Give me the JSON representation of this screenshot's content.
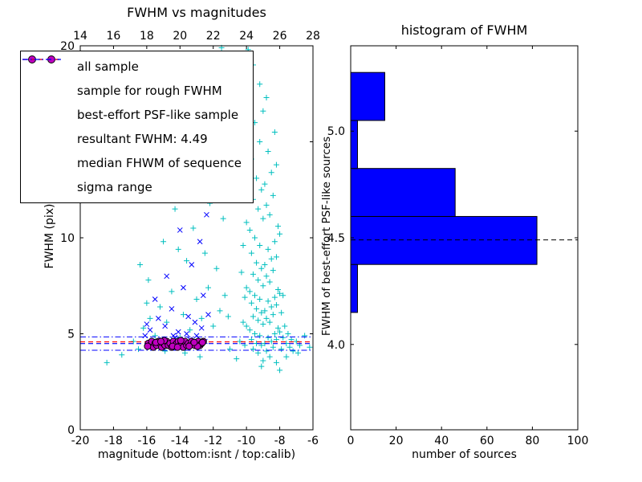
{
  "chart_data": [
    {
      "type": "scatter",
      "title": "FWHM vs magnitudes",
      "xlabel": "magnitude (bottom:isnt / top:calib)",
      "ylabel": "FWHM (pix)",
      "xlim": [
        -20,
        -6
      ],
      "ylim": [
        0,
        20
      ],
      "xticks": {
        "values": [
          -20,
          -18,
          -16,
          -14,
          -12,
          -10,
          -8,
          -6
        ],
        "labels": [
          "-20",
          "-18",
          "-16",
          "-14",
          "-12",
          "-10",
          "-8",
          "-6"
        ]
      },
      "top_xticks": {
        "xlim": [
          14,
          28
        ],
        "values": [
          14,
          16,
          18,
          20,
          22,
          24,
          26,
          28
        ],
        "labels": [
          "14",
          "16",
          "18",
          "20",
          "22",
          "24",
          "26",
          "28"
        ]
      },
      "yticks": {
        "values": [
          0,
          5,
          10,
          15,
          20
        ],
        "labels": [
          "0",
          "5",
          "10",
          "15",
          "20"
        ]
      },
      "series": [
        {
          "name": "all sample",
          "marker": "plus",
          "color": "#00bfbf",
          "points": [
            [
              -9.0,
              3.6
            ],
            [
              -8.6,
              3.8
            ],
            [
              -9.3,
              4.0
            ],
            [
              -8.8,
              4.1
            ],
            [
              -9.6,
              4.2
            ],
            [
              -8.4,
              4.3
            ],
            [
              -9.1,
              4.4
            ],
            [
              -8.9,
              4.5
            ],
            [
              -9.4,
              4.5
            ],
            [
              -8.5,
              4.6
            ],
            [
              -8.2,
              4.7
            ],
            [
              -9.7,
              4.7
            ],
            [
              -8.7,
              4.8
            ],
            [
              -9.2,
              4.9
            ],
            [
              -8.3,
              5.0
            ],
            [
              -9.5,
              5.0
            ],
            [
              -8.0,
              5.1
            ],
            [
              -9.8,
              5.2
            ],
            [
              -8.1,
              5.3
            ],
            [
              -10.0,
              5.4
            ],
            [
              -9.0,
              5.5
            ],
            [
              -8.6,
              5.6
            ],
            [
              -9.3,
              5.7
            ],
            [
              -8.8,
              5.8
            ],
            [
              -9.6,
              5.9
            ],
            [
              -8.4,
              6.0
            ],
            [
              -9.1,
              6.1
            ],
            [
              -8.9,
              6.2
            ],
            [
              -9.4,
              6.3
            ],
            [
              -8.5,
              6.4
            ],
            [
              -8.2,
              6.5
            ],
            [
              -9.7,
              6.6
            ],
            [
              -8.7,
              6.7
            ],
            [
              -9.2,
              6.8
            ],
            [
              -8.3,
              6.9
            ],
            [
              -9.5,
              7.0
            ],
            [
              -8.0,
              7.1
            ],
            [
              -9.8,
              7.2
            ],
            [
              -8.1,
              7.3
            ],
            [
              -10.0,
              7.4
            ],
            [
              -9.0,
              7.5
            ],
            [
              -8.6,
              7.7
            ],
            [
              -9.3,
              7.8
            ],
            [
              -8.8,
              8.0
            ],
            [
              -9.6,
              8.1
            ],
            [
              -8.4,
              8.3
            ],
            [
              -9.1,
              8.4
            ],
            [
              -8.9,
              8.6
            ],
            [
              -9.4,
              8.7
            ],
            [
              -8.5,
              8.9
            ],
            [
              -8.2,
              9.0
            ],
            [
              -9.7,
              9.2
            ],
            [
              -8.7,
              9.4
            ],
            [
              -9.2,
              9.6
            ],
            [
              -8.3,
              9.8
            ],
            [
              -9.5,
              10.0
            ],
            [
              -8.0,
              10.2
            ],
            [
              -9.8,
              10.4
            ],
            [
              -8.1,
              10.6
            ],
            [
              -10.0,
              10.8
            ],
            [
              -9.0,
              11.0
            ],
            [
              -8.6,
              11.2
            ],
            [
              -9.3,
              11.5
            ],
            [
              -8.8,
              11.7
            ],
            [
              -9.6,
              12.0
            ],
            [
              -8.4,
              12.2
            ],
            [
              -9.1,
              12.5
            ],
            [
              -8.9,
              12.8
            ],
            [
              -9.4,
              13.1
            ],
            [
              -8.5,
              13.4
            ],
            [
              -8.2,
              13.8
            ],
            [
              -9.7,
              14.1
            ],
            [
              -8.7,
              14.5
            ],
            [
              -9.2,
              15.0
            ],
            [
              -8.3,
              15.5
            ],
            [
              -9.5,
              16.0
            ],
            [
              -9.0,
              16.6
            ],
            [
              -8.8,
              17.3
            ],
            [
              -9.2,
              18.0
            ],
            [
              -9.6,
              19.0
            ],
            [
              -9.9,
              19.8
            ],
            [
              -10.1,
              4.4
            ],
            [
              -10.2,
              5.6
            ],
            [
              -10.1,
              6.9
            ],
            [
              -10.3,
              8.2
            ],
            [
              -10.2,
              9.6
            ],
            [
              -7.9,
              4.2
            ],
            [
              -7.8,
              4.8
            ],
            [
              -7.7,
              5.4
            ],
            [
              -7.9,
              6.1
            ],
            [
              -7.8,
              7.0
            ],
            [
              -7.6,
              4.5
            ],
            [
              -7.5,
              5.0
            ],
            [
              -7.4,
              4.3
            ],
            [
              -7.3,
              4.7
            ],
            [
              -7.2,
              4.1
            ],
            [
              -7.0,
              4.6
            ],
            [
              -6.8,
              4.4
            ],
            [
              -6.5,
              4.9
            ],
            [
              -6.2,
              4.3
            ],
            [
              -16.8,
              4.6
            ],
            [
              -16.2,
              5.3
            ],
            [
              -15.9,
              7.8
            ],
            [
              -15.5,
              4.9
            ],
            [
              -15.2,
              6.4
            ],
            [
              -15.0,
              9.8
            ],
            [
              -14.8,
              5.6
            ],
            [
              -14.5,
              7.2
            ],
            [
              -14.3,
              11.5
            ],
            [
              -14.0,
              4.8
            ],
            [
              -13.8,
              6.0
            ],
            [
              -13.6,
              8.8
            ],
            [
              -13.4,
              5.2
            ],
            [
              -13.2,
              10.5
            ],
            [
              -13.0,
              6.8
            ],
            [
              -12.9,
              12.8
            ],
            [
              -12.7,
              5.8
            ],
            [
              -12.5,
              9.2
            ],
            [
              -12.4,
              19.6
            ],
            [
              -12.3,
              7.4
            ],
            [
              -12.1,
              13.5
            ],
            [
              -12.0,
              5.4
            ],
            [
              -11.9,
              16.2
            ],
            [
              -11.8,
              8.4
            ],
            [
              -11.6,
              6.2
            ],
            [
              -11.5,
              19.9
            ],
            [
              -11.4,
              11.0
            ],
            [
              -11.3,
              7.0
            ],
            [
              -11.2,
              14.6
            ],
            [
              -11.1,
              5.9
            ],
            [
              -15.6,
              12.2
            ],
            [
              -14.6,
              13.9
            ],
            [
              -16.4,
              8.6
            ],
            [
              -13.9,
              15.3
            ],
            [
              -12.6,
              17.4
            ],
            [
              -15.8,
              5.8
            ],
            [
              -14.1,
              9.4
            ],
            [
              -13.3,
              4.5
            ],
            [
              -16.0,
              6.6
            ],
            [
              -12.2,
              11.8
            ],
            [
              -18.4,
              3.5
            ],
            [
              -17.5,
              3.9
            ],
            [
              -16.5,
              4.2
            ],
            [
              -15.4,
              4.4
            ],
            [
              -14.9,
              4.1
            ],
            [
              -13.7,
              4.0
            ],
            [
              -12.8,
              3.8
            ],
            [
              -11.0,
              4.2
            ],
            [
              -10.6,
              3.7
            ],
            [
              -10.4,
              4.6
            ],
            [
              -8.2,
              3.5
            ],
            [
              -8.0,
              3.1
            ],
            [
              -9.1,
              3.3
            ],
            [
              -7.6,
              3.8
            ],
            [
              -6.9,
              4.0
            ]
          ]
        },
        {
          "name": "sample for rough FWHM",
          "marker": "x",
          "color": "#0000ff",
          "points": [
            [
              -16.1,
              4.9
            ],
            [
              -15.8,
              5.2
            ],
            [
              -15.6,
              4.6
            ],
            [
              -15.3,
              5.8
            ],
            [
              -15.1,
              4.7
            ],
            [
              -14.9,
              5.4
            ],
            [
              -14.7,
              4.5
            ],
            [
              -14.5,
              6.3
            ],
            [
              -14.3,
              4.8
            ],
            [
              -14.1,
              5.1
            ],
            [
              -13.9,
              4.6
            ],
            [
              -13.8,
              7.4
            ],
            [
              -13.6,
              5.0
            ],
            [
              -13.4,
              4.7
            ],
            [
              -13.3,
              8.6
            ],
            [
              -13.1,
              5.6
            ],
            [
              -13.0,
              4.9
            ],
            [
              -12.8,
              9.8
            ],
            [
              -12.7,
              5.3
            ],
            [
              -12.5,
              4.6
            ],
            [
              -12.4,
              11.2
            ],
            [
              -12.3,
              6.0
            ],
            [
              -14.0,
              10.4
            ],
            [
              -14.8,
              8.0
            ],
            [
              -15.5,
              6.8
            ],
            [
              -12.9,
              4.5
            ],
            [
              -13.5,
              5.9
            ],
            [
              -16.0,
              5.5
            ],
            [
              -12.6,
              7.0
            ],
            [
              -14.4,
              4.9
            ]
          ]
        },
        {
          "name": "best-effort PSF-like sample",
          "marker": "circle",
          "color": "#bf00bf",
          "edge": "#000000",
          "points": [
            [
              -15.9,
              4.5
            ],
            [
              -15.8,
              4.4
            ],
            [
              -15.7,
              4.6
            ],
            [
              -15.6,
              4.3
            ],
            [
              -15.5,
              4.5
            ],
            [
              -15.4,
              4.4
            ],
            [
              -15.3,
              4.6
            ],
            [
              -15.2,
              4.5
            ],
            [
              -15.1,
              4.3
            ],
            [
              -15.0,
              4.5
            ],
            [
              -14.9,
              4.4
            ],
            [
              -14.8,
              4.6
            ],
            [
              -14.7,
              4.4
            ],
            [
              -14.6,
              4.5
            ],
            [
              -14.5,
              4.3
            ],
            [
              -14.4,
              4.6
            ],
            [
              -14.3,
              4.4
            ],
            [
              -14.2,
              4.5
            ],
            [
              -14.1,
              4.6
            ],
            [
              -14.0,
              4.4
            ],
            [
              -13.9,
              4.5
            ],
            [
              -13.8,
              4.3
            ],
            [
              -13.7,
              4.6
            ],
            [
              -13.6,
              4.4
            ],
            [
              -13.5,
              4.5
            ],
            [
              -13.4,
              4.4
            ],
            [
              -13.3,
              4.6
            ],
            [
              -13.2,
              4.5
            ],
            [
              -13.1,
              4.4
            ],
            [
              -13.0,
              4.5
            ],
            [
              -12.9,
              4.6
            ],
            [
              -12.8,
              4.4
            ],
            [
              -12.7,
              4.5
            ],
            [
              -12.6,
              4.6
            ],
            [
              -15.95,
              4.35
            ],
            [
              -15.45,
              4.55
            ],
            [
              -14.95,
              4.65
            ],
            [
              -14.45,
              4.35
            ],
            [
              -13.95,
              4.65
            ],
            [
              -13.45,
              4.35
            ],
            [
              -12.95,
              4.35
            ],
            [
              -12.65,
              4.55
            ],
            [
              -15.15,
              4.6
            ],
            [
              -14.15,
              4.3
            ],
            [
              -13.15,
              4.55
            ]
          ]
        }
      ],
      "hlines": [
        {
          "y": 4.49,
          "color": "#0000ff",
          "style": "dashed",
          "label": "resultant FWHM: 4.49"
        },
        {
          "y": 4.58,
          "color": "#ff0000",
          "style": "dashed",
          "label": "median FHWM of sequence"
        },
        {
          "y": 4.84,
          "color": "#0000ff",
          "style": "dashdot",
          "label": "sigma range"
        },
        {
          "y": 4.14,
          "color": "#0000ff",
          "style": "dashdot",
          "label": "sigma range"
        }
      ],
      "legend": [
        {
          "marker": "plus",
          "color": "#00bfbf",
          "label": "all sample"
        },
        {
          "marker": "x",
          "color": "#0000ff",
          "label": "sample for rough FWHM"
        },
        {
          "marker": "circle",
          "color": "#bf00bf",
          "edge": "#000000",
          "label": "best-effort PSF-like sample"
        },
        {
          "marker": "dashed-line",
          "color": "#0000ff",
          "label": "resultant FWHM: 4.49"
        },
        {
          "marker": "dashed-line",
          "color": "#ff0000",
          "label": "median FHWM of sequence"
        },
        {
          "marker": "dashdot-line",
          "color": "#0000ff",
          "label": "sigma range"
        }
      ]
    },
    {
      "type": "bar",
      "orientation": "horizontal",
      "title": "histogram of FWHM",
      "xlabel": "number of sources",
      "ylabel": "FWHM of best-effort PSF-like sources",
      "xlim": [
        0,
        100
      ],
      "ylim": [
        3.6,
        5.4
      ],
      "xticks": {
        "values": [
          0,
          20,
          40,
          60,
          80,
          100
        ],
        "labels": [
          "0",
          "20",
          "40",
          "60",
          "80",
          "100"
        ]
      },
      "yticks": {
        "values": [
          4.0,
          4.5,
          5.0
        ],
        "labels": [
          "4.0",
          "4.5",
          "5.0"
        ]
      },
      "bin_edges": [
        4.15,
        4.375,
        4.6,
        4.825,
        5.05,
        5.275
      ],
      "counts": [
        3,
        82,
        46,
        3,
        15
      ],
      "bar_color": "#0000ff",
      "bar_edge": "#000000",
      "median_line": {
        "y": 4.49,
        "color": "#000000",
        "style": "dashed"
      }
    }
  ]
}
